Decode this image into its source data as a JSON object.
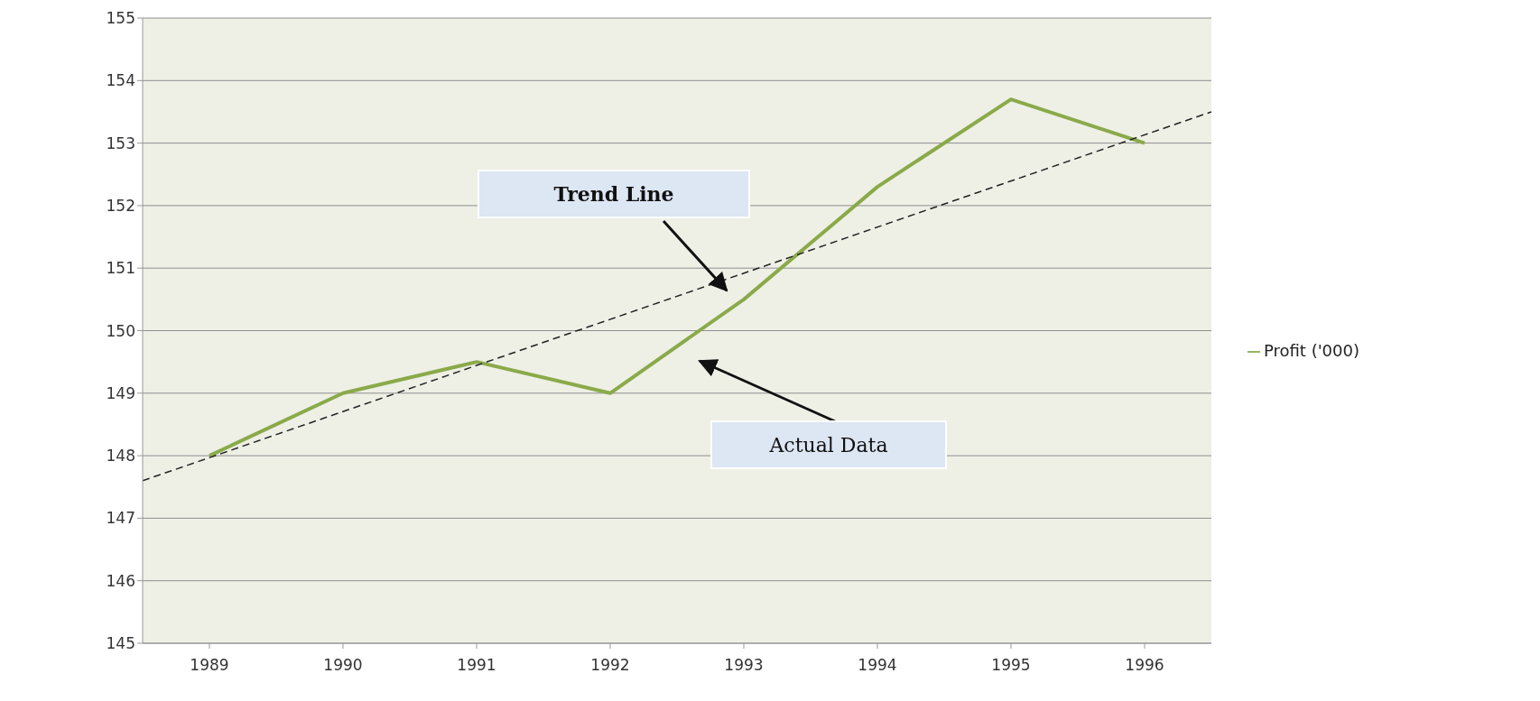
{
  "chart_data": {
    "type": "line",
    "x": [
      1989,
      1990,
      1991,
      1992,
      1993,
      1994,
      1995,
      1996
    ],
    "series": [
      {
        "name": "Profit ('000)",
        "color": "#8aaa4a",
        "values": [
          148,
          149,
          149.5,
          149,
          150.5,
          152.3,
          153.7,
          153
        ]
      },
      {
        "type": "line",
        "color": "#222222",
        "line_style": "dashed",
        "x": [
          1988.5,
          1996.5
        ],
        "values": [
          147.6,
          153.5
        ]
      }
    ],
    "xlim": [
      1988.5,
      1996.5
    ],
    "xticks": [
      1989,
      1990,
      1991,
      1992,
      1993,
      1994,
      1995,
      1996
    ],
    "ylim": [
      145,
      155
    ],
    "yticks": [
      145,
      146,
      147,
      148,
      149,
      150,
      151,
      152,
      153,
      154,
      155
    ],
    "grid": "y",
    "legend": "right",
    "marker": "none",
    "line_style": "solid",
    "annotations": [
      "Trend Line",
      "Actual Data"
    ]
  }
}
